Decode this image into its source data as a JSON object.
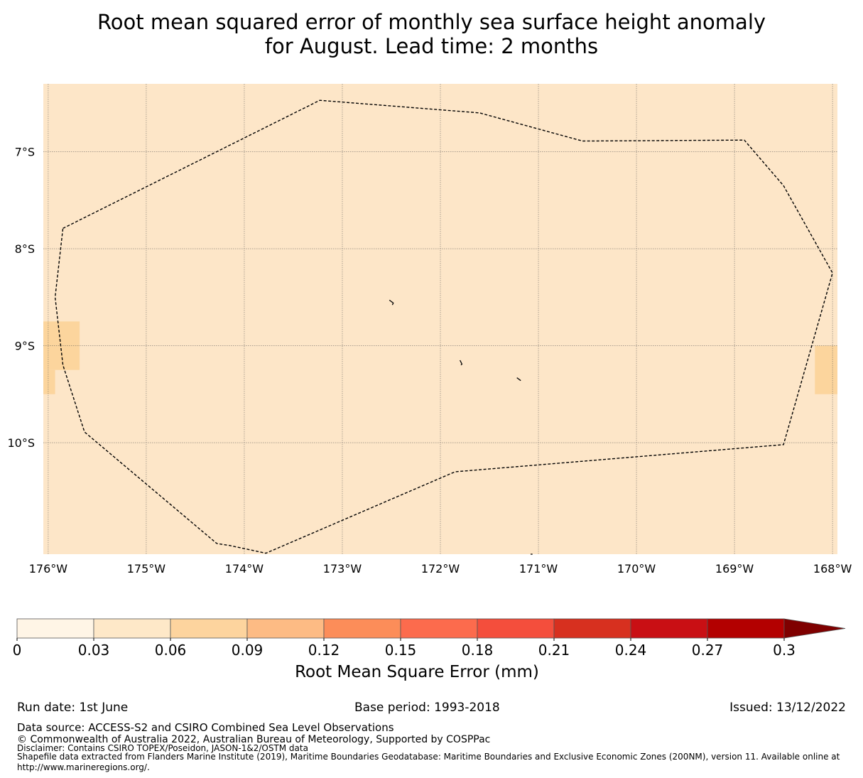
{
  "title": {
    "line1": "Root mean squared error of monthly sea surface height anomaly",
    "line2": "for August. Lead time: 2 months"
  },
  "map": {
    "background_color": "#fde6c8",
    "lon_range": [
      -176.05,
      -167.95
    ],
    "lat_range": [
      -11.15,
      -6.3
    ],
    "lon_ticks": [
      {
        "value": -176,
        "label": "176°W"
      },
      {
        "value": -175,
        "label": "175°W"
      },
      {
        "value": -174,
        "label": "174°W"
      },
      {
        "value": -173,
        "label": "173°W"
      },
      {
        "value": -172,
        "label": "172°W"
      },
      {
        "value": -171,
        "label": "171°W"
      },
      {
        "value": -170,
        "label": "170°W"
      },
      {
        "value": -169,
        "label": "169°W"
      },
      {
        "value": -168,
        "label": "168°W"
      }
    ],
    "lat_ticks": [
      {
        "value": -7,
        "label": "7°S"
      },
      {
        "value": -8,
        "label": "8°S"
      },
      {
        "value": -9,
        "label": "9°S"
      },
      {
        "value": -10,
        "label": "10°S"
      }
    ],
    "higher_error_cells": [
      {
        "lon": [
          -176.05,
          -175.68
        ],
        "lat": [
          -9.25,
          -8.75
        ],
        "color": "#fcd59d"
      },
      {
        "lon": [
          -176.05,
          -175.93
        ],
        "lat": [
          -9.5,
          -9.25
        ],
        "color": "#fcd59d"
      },
      {
        "lon": [
          -168.18,
          -167.95
        ],
        "lat": [
          -9.5,
          -9.0
        ],
        "color": "#fcd59d"
      }
    ],
    "eez_boundary": [
      [
        -175.85,
        -7.79
      ],
      [
        -173.23,
        -6.47
      ],
      [
        -171.6,
        -6.6
      ],
      [
        -170.55,
        -6.89
      ],
      [
        -168.9,
        -6.88
      ],
      [
        -168.5,
        -7.35
      ],
      [
        -168.0,
        -8.25
      ],
      [
        -168.5,
        -10.02
      ],
      [
        -171.85,
        -10.3
      ],
      [
        -173.78,
        -11.14
      ],
      [
        -174.15,
        -11.06
      ],
      [
        -174.28,
        -11.04
      ],
      [
        -175.63,
        -9.89
      ],
      [
        -175.85,
        -9.2
      ],
      [
        -175.93,
        -8.5
      ]
    ],
    "islands": [
      [
        [
          -172.52,
          -8.53
        ],
        [
          -172.48,
          -8.56
        ],
        [
          -172.49,
          -8.58
        ]
      ],
      [
        [
          -171.8,
          -9.15
        ],
        [
          -171.78,
          -9.19
        ],
        [
          -171.79,
          -9.2
        ]
      ],
      [
        [
          -171.22,
          -9.33
        ],
        [
          -171.18,
          -9.36
        ]
      ],
      [
        [
          -171.08,
          -11.15
        ],
        [
          -171.06,
          -11.15
        ]
      ]
    ]
  },
  "colorbar": {
    "label": "Root Mean Square Error (mm)",
    "colors": [
      "#fff5e6",
      "#fee8c8",
      "#fdd49e",
      "#fdbb84",
      "#fc8d59",
      "#fc6b4d",
      "#f44e3c",
      "#d7301f",
      "#c90f14",
      "#b30000"
    ],
    "extend_color": "#7f0000",
    "ticks": [
      "0",
      "0.03",
      "0.06",
      "0.09",
      "0.12",
      "0.15",
      "0.18",
      "0.21",
      "0.24",
      "0.27",
      "0.3"
    ]
  },
  "footer": {
    "run_date": "Run date: 1st June",
    "base_period": "Base period: 1993-2018",
    "issued": "Issued: 13/12/2022",
    "data_source": "Data source: ACCESS-S2 and CSIRO Combined Sea Level Observations",
    "copyright": "© Commonwealth of Australia 2022, Australian Bureau of Meteorology, Supported by COSPPac",
    "disclaimer": "Disclaimer: Contains CSIRO TOPEX/Poseidon, JASON-1&2/OSTM data",
    "shapefile_line1": "Shapefile data extracted from Flanders Marine Institute (2019), Maritime Boundaries Geodatabase: Maritime Boundaries and Exclusive Economic Zones (200NM), version 11. Available online at",
    "shapefile_line2": "http://www.marineregions.org/."
  }
}
